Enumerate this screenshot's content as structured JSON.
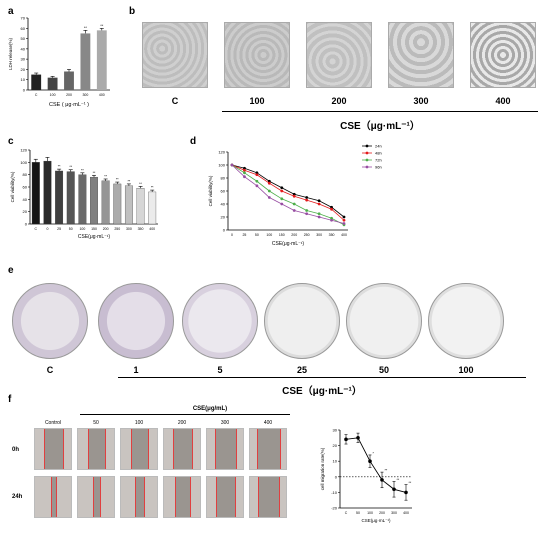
{
  "panels": {
    "a": "a",
    "b": "b",
    "c": "c",
    "d": "d",
    "e": "e",
    "f": "f"
  },
  "panel_b": {
    "labels": [
      "C",
      "100",
      "200",
      "300",
      "400"
    ],
    "axis_title": "CSE（μg·mL⁻¹）"
  },
  "panel_e": {
    "labels": [
      "C",
      "1",
      "5",
      "25",
      "50",
      "100"
    ],
    "axis_title": "CSE（μg·mL⁻¹）"
  },
  "panel_f": {
    "title": "CSE(μg/mL)",
    "columns": [
      "Control",
      "50",
      "100",
      "200",
      "300",
      "400"
    ],
    "rows": [
      "0h",
      "24h"
    ]
  },
  "chart_data": [
    {
      "id": "a",
      "type": "bar",
      "categories": [
        "C",
        "100",
        "200",
        "300",
        "400"
      ],
      "values": [
        15,
        12,
        18,
        55,
        58
      ],
      "errors": [
        1.5,
        1.2,
        2,
        3,
        2
      ],
      "stars": [
        "",
        "",
        "",
        "**",
        "**"
      ],
      "ylabel": "LDH release(%)",
      "xlabel": "CSE ( μg·mL⁻¹ )",
      "yticks": [
        0,
        10,
        20,
        30,
        40,
        50,
        60,
        70
      ],
      "ylim": [
        0,
        70
      ],
      "colors": [
        "#222222",
        "#444444",
        "#666666",
        "#888888",
        "#aaaaaa"
      ]
    },
    {
      "id": "c",
      "type": "bar",
      "categories": [
        "C",
        "0",
        "25",
        "50",
        "100",
        "150",
        "200",
        "250",
        "300",
        "350",
        "400"
      ],
      "values": [
        100,
        102,
        86,
        85,
        80,
        76,
        70,
        65,
        62,
        58,
        52
      ],
      "errors": [
        5,
        6,
        3,
        3,
        3,
        3,
        3,
        3,
        3,
        3,
        3
      ],
      "stars": [
        "",
        "",
        "**",
        "**",
        "**",
        "**",
        "**",
        "**",
        "**",
        "**",
        "**"
      ],
      "ylabel": "Cell viability(%)",
      "xlabel": "CSE(μg·mL⁻¹)",
      "yticks": [
        0,
        20,
        40,
        60,
        80,
        100,
        120
      ],
      "ylim": [
        0,
        120
      ]
    },
    {
      "id": "d",
      "type": "line",
      "x": [
        "0",
        "25",
        "50",
        "100",
        "150",
        "200",
        "250",
        "300",
        "350",
        "400"
      ],
      "ylabel": "Cell viability(%)",
      "xlabel": "CSE(μg·mL⁻¹)",
      "yticks": [
        0,
        20,
        40,
        60,
        80,
        100,
        120
      ],
      "ylim": [
        0,
        120
      ],
      "series": [
        {
          "name": "24h",
          "color": "#000000",
          "values": [
            100,
            95,
            88,
            75,
            65,
            55,
            50,
            45,
            35,
            20
          ]
        },
        {
          "name": "48h",
          "color": "#e41a1c",
          "values": [
            100,
            92,
            85,
            72,
            60,
            52,
            46,
            40,
            32,
            15
          ]
        },
        {
          "name": "72h",
          "color": "#4daf4a",
          "values": [
            100,
            88,
            75,
            60,
            48,
            40,
            30,
            25,
            18,
            8
          ]
        },
        {
          "name": "96h",
          "color": "#984ea3",
          "values": [
            100,
            82,
            68,
            50,
            40,
            30,
            25,
            20,
            15,
            10
          ]
        }
      ],
      "legend": "top-right"
    },
    {
      "id": "f",
      "type": "line",
      "x": [
        "C",
        "50",
        "100",
        "200",
        "300",
        "400"
      ],
      "values": [
        24,
        25,
        10,
        -2,
        -8,
        -10
      ],
      "errors": [
        3,
        3,
        4,
        5,
        5,
        5
      ],
      "stars": [
        "",
        "",
        "*",
        "**",
        "**",
        "**"
      ],
      "ylabel": "cell migration rate(%)",
      "xlabel": "CSE(μg·mL⁻¹)",
      "yticks": [
        -20,
        -10,
        0,
        10,
        20,
        30
      ],
      "ylim": [
        -20,
        30
      ]
    }
  ]
}
